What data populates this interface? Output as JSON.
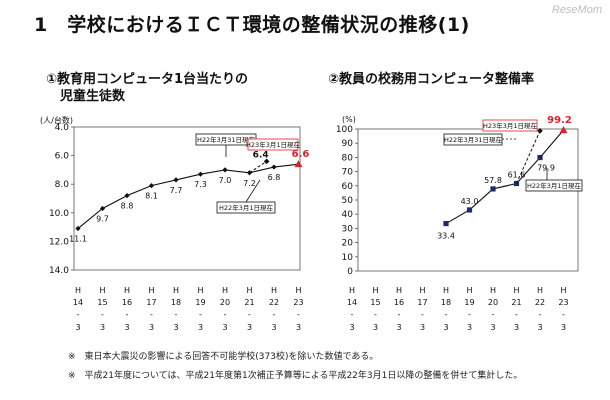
{
  "watermark": "ReseMom",
  "title": "1　学校におけるＩＣＴ環境の整備状況の推移(1)",
  "notes": [
    "※　東日本大震災の影響による回答不可能学校(373校)を除いた数値である。",
    "※　平成21年度については、平成21年度第1次補正予算等による平成22年3月1日以降の整備を併せて集計した。"
  ],
  "accent_color": "#e0202a",
  "chart_data": [
    {
      "type": "line",
      "title_line1": "①教育用コンピュータ1台当たりの",
      "title_line2": "児童生徒数",
      "yunit": "(人/台数)",
      "ylim": [
        4.0,
        14.0
      ],
      "y_inverted": true,
      "yticks": [
        "4.0",
        "6.0",
        "8.0",
        "10.0",
        "12.0",
        "14.0"
      ],
      "x_labels": [
        {
          "top": "H",
          "mid": "14",
          "bot": "3"
        },
        {
          "top": "H",
          "mid": "15",
          "bot": "3"
        },
        {
          "top": "H",
          "mid": "16",
          "bot": "3"
        },
        {
          "top": "H",
          "mid": "17",
          "bot": "3"
        },
        {
          "top": "H",
          "mid": "18",
          "bot": "3"
        },
        {
          "top": "H",
          "mid": "19",
          "bot": "3"
        },
        {
          "top": "H",
          "mid": "20",
          "bot": "3"
        },
        {
          "top": "H",
          "mid": "21",
          "bot": "3"
        },
        {
          "top": "H",
          "mid": "22",
          "bot": "3"
        },
        {
          "top": "H",
          "mid": "23",
          "bot": "3"
        }
      ],
      "series": [
        {
          "x": [
            0,
            1,
            2,
            3,
            4,
            5,
            6,
            7,
            8
          ],
          "values": [
            11.1,
            9.7,
            8.8,
            8.1,
            7.7,
            7.3,
            7.0,
            7.2,
            6.8
          ],
          "labels": [
            "11.1",
            "9.7",
            "8.8",
            "8.1",
            "7.7",
            "7.3",
            "7.0",
            "7.2",
            "6.8"
          ]
        }
      ],
      "latest": {
        "x": 9,
        "value": 6.6,
        "label": "6.6",
        "callout": "H23年3月1日現在"
      },
      "branch": {
        "x": 7.7,
        "value": 6.4,
        "label": "6.4",
        "callout": "H22年3月31日現在"
      },
      "ref_callout": "H22年3月1日現在"
    },
    {
      "type": "line",
      "title": "②教員の校務用コンピュータ整備率",
      "yunit": "(%)",
      "ylim": [
        0,
        100
      ],
      "yticks": [
        "0",
        "10",
        "20",
        "30",
        "40",
        "50",
        "60",
        "70",
        "80",
        "90",
        "100"
      ],
      "x_labels": [
        {
          "top": "H",
          "mid": "14",
          "bot": "3"
        },
        {
          "top": "H",
          "mid": "15",
          "bot": "3"
        },
        {
          "top": "H",
          "mid": "16",
          "bot": "3"
        },
        {
          "top": "H",
          "mid": "17",
          "bot": "3"
        },
        {
          "top": "H",
          "mid": "18",
          "bot": "3"
        },
        {
          "top": "H",
          "mid": "19",
          "bot": "3"
        },
        {
          "top": "H",
          "mid": "20",
          "bot": "3"
        },
        {
          "top": "H",
          "mid": "21",
          "bot": "3"
        },
        {
          "top": "H",
          "mid": "22",
          "bot": "3"
        },
        {
          "top": "H",
          "mid": "23",
          "bot": "3"
        }
      ],
      "series": [
        {
          "x": [
            4,
            5,
            6,
            7,
            8
          ],
          "values": [
            33.4,
            43.0,
            57.8,
            61.6,
            79.9
          ],
          "labels": [
            "33.4",
            "43.0",
            "57.8",
            "61.6",
            "79.9"
          ]
        }
      ],
      "latest": {
        "x": 9,
        "value": 99.2,
        "label": "99.2",
        "callout": "H23年3月1日現在"
      },
      "branch": {
        "x": 8,
        "value": 98.7,
        "label": "98.7",
        "callout": "H22年3月31日現在"
      },
      "ref_callout": "H22年3月1日現在"
    }
  ]
}
